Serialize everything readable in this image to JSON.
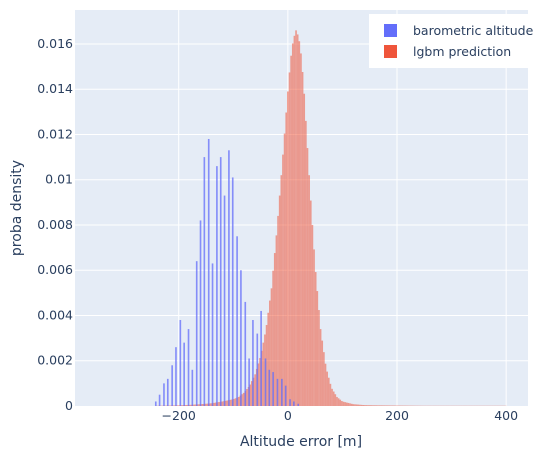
{
  "chart_data": {
    "type": "histogram",
    "xlabel": "Altitude error [m]",
    "ylabel": "proba density",
    "xlim": [
      -390,
      440
    ],
    "ylim": [
      0,
      0.0175
    ],
    "x_ticks": [
      -200,
      0,
      200,
      400
    ],
    "x_tick_labels": [
      "−200",
      "0",
      "200",
      "400"
    ],
    "y_ticks": [
      0,
      0.002,
      0.004,
      0.006,
      0.008,
      0.01,
      0.012,
      0.014,
      0.016
    ],
    "y_tick_labels": [
      "0",
      "0.002",
      "0.004",
      "0.006",
      "0.008",
      "0.01",
      "0.012",
      "0.014",
      "0.016"
    ],
    "grid": true,
    "legend_position": "top-right",
    "background_color": "#e5ecf6",
    "series": [
      {
        "name": "barometric altitude",
        "color": "#636efa",
        "opacity": 0.75,
        "bin_width": 3,
        "x": [
          -242,
          -235,
          -227,
          -220,
          -212,
          -205,
          -197,
          -190,
          -182,
          -175,
          -167,
          -160,
          -153,
          -145,
          -138,
          -130,
          -123,
          -116,
          -108,
          -101,
          -93,
          -86,
          -78,
          -71,
          -64,
          -56,
          -49,
          -41,
          -34,
          -27,
          -19,
          -11,
          -4,
          4,
          11,
          19
        ],
        "values": [
          0.0002,
          0.0005,
          0.001,
          0.0012,
          0.0018,
          0.0026,
          0.0038,
          0.0028,
          0.0034,
          0.0016,
          0.0064,
          0.0082,
          0.011,
          0.0118,
          0.0063,
          0.0106,
          0.011,
          0.0093,
          0.0113,
          0.0101,
          0.0075,
          0.006,
          0.0046,
          0.0021,
          0.0038,
          0.0032,
          0.0042,
          0.0021,
          0.0016,
          0.0015,
          0.0012,
          0.0012,
          0.0009,
          0.0003,
          0.0002,
          0.0001
        ]
      },
      {
        "name": "lgbm prediction",
        "color": "#ef553b",
        "opacity": 0.55,
        "bin_width": 3,
        "x": [
          -240,
          -220,
          -200,
          -180,
          -160,
          -140,
          -120,
          -100,
          -90,
          -80,
          -70,
          -60,
          -50,
          -40,
          -30,
          -20,
          -10,
          0,
          5,
          10,
          15,
          20,
          25,
          30,
          35,
          40,
          50,
          60,
          70,
          80,
          90,
          100,
          120,
          140,
          160,
          200,
          250,
          300,
          350,
          400
        ],
        "values": [
          1e-05,
          2e-05,
          3e-05,
          5e-05,
          8e-05,
          0.00012,
          0.0002,
          0.0003,
          0.0004,
          0.0006,
          0.0009,
          0.0014,
          0.0022,
          0.0034,
          0.0052,
          0.0078,
          0.0108,
          0.0139,
          0.0153,
          0.0162,
          0.0166,
          0.0163,
          0.0154,
          0.0138,
          0.0118,
          0.0098,
          0.0062,
          0.0034,
          0.0017,
          0.0008,
          0.0004,
          0.0002,
          8e-05,
          4e-05,
          3e-05,
          2e-05,
          1e-05,
          1e-05,
          1e-05,
          1e-05
        ]
      }
    ]
  }
}
